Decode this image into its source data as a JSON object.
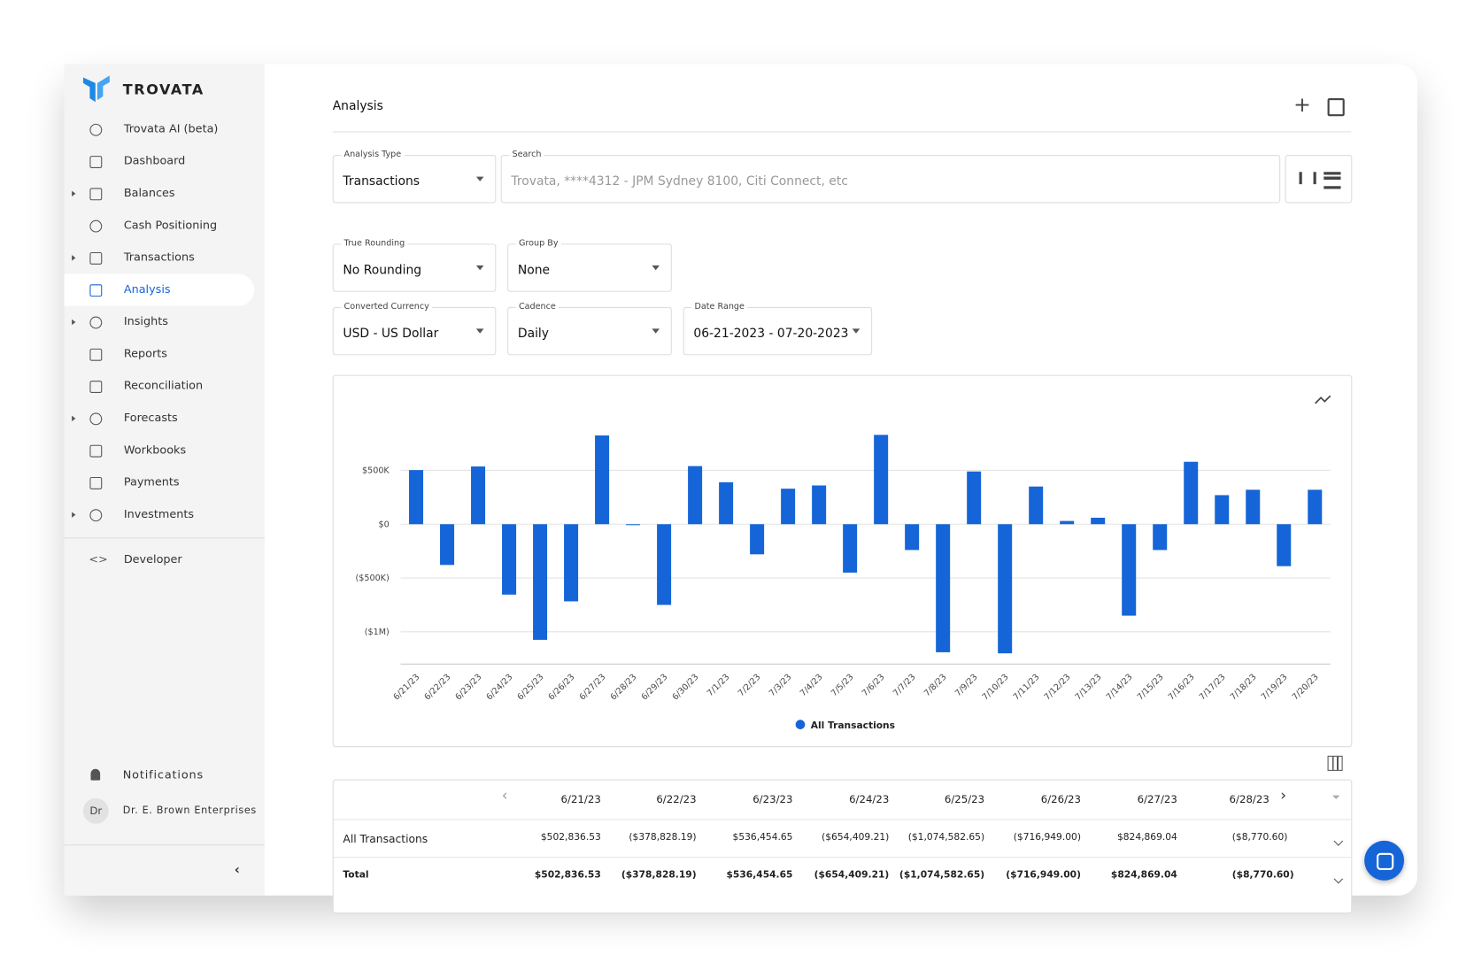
{
  "brand": "TROVATA",
  "nav": [
    {
      "label": "Trovata AI (beta)"
    },
    {
      "label": "Dashboard"
    },
    {
      "label": "Balances",
      "expandable": true
    },
    {
      "label": "Cash Positioning"
    },
    {
      "label": "Transactions",
      "expandable": true
    },
    {
      "label": "Analysis",
      "active": true
    },
    {
      "label": "Insights",
      "expandable": true
    },
    {
      "label": "Reports"
    },
    {
      "label": "Reconciliation"
    },
    {
      "label": "Forecasts",
      "expandable": true
    },
    {
      "label": "Workbooks"
    },
    {
      "label": "Payments"
    },
    {
      "label": "Investments",
      "expandable": true
    }
  ],
  "developer": "Developer",
  "footer": {
    "notifications": "Notifications",
    "avatar": "Dr",
    "organization": "Dr. E. Brown Enterprises"
  },
  "header": {
    "title": "Analysis"
  },
  "filters": {
    "analysis_type": {
      "label": "Analysis Type",
      "value": "Transactions"
    },
    "search": {
      "label": "Search",
      "placeholder": "Trovata, ****4312 - JPM Sydney 8100, Citi Connect, etc"
    },
    "true_rounding": {
      "label": "True Rounding",
      "value": "No Rounding"
    },
    "group_by": {
      "label": "Group By",
      "value": "None"
    },
    "converted_currency": {
      "label": "Converted Currency",
      "value": "USD - US Dollar"
    },
    "cadence": {
      "label": "Cadence",
      "value": "Daily"
    },
    "date_range": {
      "label": "Date Range",
      "value": "06-21-2023 - 07-20-2023"
    }
  },
  "chart_data": {
    "type": "bar",
    "categories": [
      "6/21/23",
      "6/22/23",
      "6/23/23",
      "6/24/23",
      "6/25/23",
      "6/26/23",
      "6/27/23",
      "6/28/23",
      "6/29/23",
      "6/30/23",
      "7/1/23",
      "7/2/23",
      "7/3/23",
      "7/4/23",
      "7/5/23",
      "7/6/23",
      "7/7/23",
      "7/8/23",
      "7/9/23",
      "7/10/23",
      "7/11/23",
      "7/12/23",
      "7/13/23",
      "7/14/23",
      "7/15/23",
      "7/16/23",
      "7/17/23",
      "7/18/23",
      "7/19/23",
      "7/20/23"
    ],
    "series": [
      {
        "name": "All Transactions",
        "color": "#1565d8",
        "values": [
          502836.53,
          -378828.19,
          536454.65,
          -654409.21,
          -1074582.65,
          -716949.0,
          824869.04,
          -8770.6,
          -750000,
          540000,
          390000,
          -280000,
          330000,
          360000,
          -450000,
          830000,
          -240000,
          -1190000,
          490000,
          -1200000,
          350000,
          30000,
          60000,
          -850000,
          -240000,
          580000,
          270000,
          320000,
          -390000,
          320000
        ]
      }
    ],
    "ylim": [
      -1300000,
      1000000
    ],
    "yticks": [
      {
        "value": 500000,
        "label": "$500K"
      },
      {
        "value": 0,
        "label": "$0"
      },
      {
        "value": -500000,
        "label": "($500K)"
      },
      {
        "value": -1000000,
        "label": "($1M)"
      }
    ],
    "grid": true
  },
  "table": {
    "columns": [
      "6/21/23",
      "6/22/23",
      "6/23/23",
      "6/24/23",
      "6/25/23",
      "6/26/23",
      "6/27/23",
      "6/28/23"
    ],
    "rows": [
      {
        "label": "All Transactions",
        "cells": [
          "$502,836.53",
          "($378,828.19)",
          "$536,454.65",
          "($654,409.21)",
          "($1,074,582.65)",
          "($716,949.00)",
          "$824,869.04",
          "($8,770.60)"
        ]
      },
      {
        "label": "Total",
        "cells": [
          "$502,836.53",
          "($378,828.19)",
          "$536,454.65",
          "($654,409.21)",
          "($1,074,582.65)",
          "($716,949.00)",
          "$824,869.04",
          "($8,770.60)"
        ]
      }
    ]
  }
}
